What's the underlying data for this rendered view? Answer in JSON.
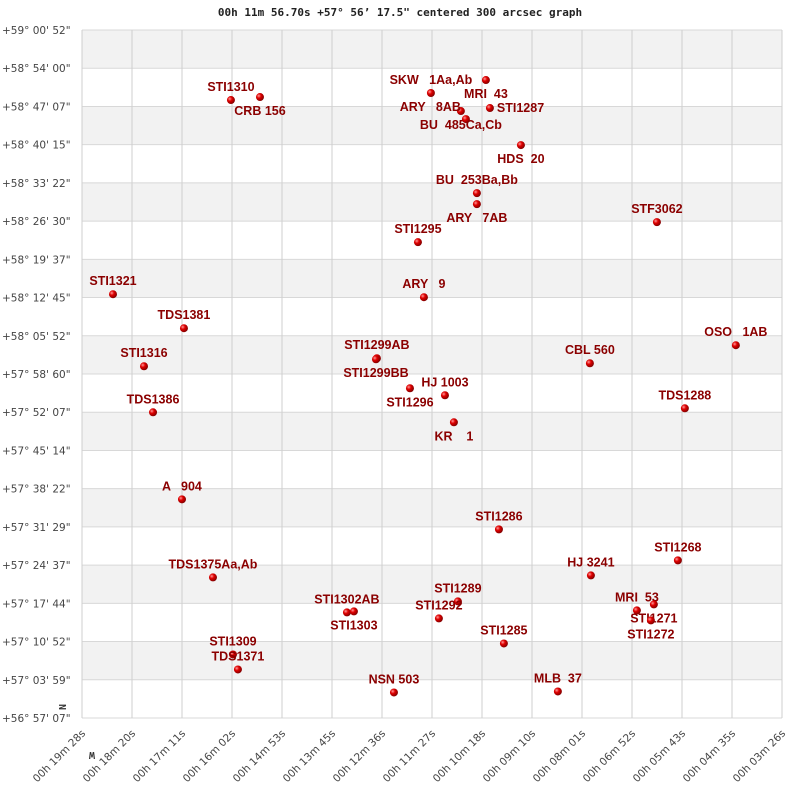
{
  "chart_data": {
    "type": "scatter",
    "title": "00h 11m 56.70s +57° 56’ 17.5\" centered 300 arcsec graph",
    "x_axis": {
      "quantity": "right ascension (seconds of time)",
      "reversed": true,
      "range_s": [
        1168,
        206
      ],
      "tick_labels": [
        "00h 19m 28s",
        "00h 18m 20s",
        "00h 17m 11s",
        "00h 16m 02s",
        "00h 14m 53s",
        "00h 13m 45s",
        "00h 12m 36s",
        "00h 11m 27s",
        "00h 10m 18s",
        "00h 09m 10s",
        "00h 08m 01s",
        "00h 06m 52s",
        "00h 05m 43s",
        "00h 04m 35s",
        "00h 03m 26s"
      ],
      "direction_label": "W"
    },
    "y_axis": {
      "quantity": "declination (degrees)",
      "range_deg": [
        56.9519,
        59.0144
      ],
      "tick_labels": [
        "+59° 00' 52\"",
        "+58° 54' 00\"",
        "+58° 47' 07\"",
        "+58° 40' 15\"",
        "+58° 33' 22\"",
        "+58° 26' 30\"",
        "+58° 19' 37\"",
        "+58° 12' 45\"",
        "+58° 05' 52\"",
        "+57° 58' 60\"",
        "+57° 52' 07\"",
        "+57° 45' 14\"",
        "+57° 38' 22\"",
        "+57° 31' 29\"",
        "+57° 24' 37\"",
        "+57° 17' 44\"",
        "+57° 10' 52\"",
        "+57° 03' 59\"",
        "+56° 57' 07\""
      ],
      "direction_label": "N"
    },
    "grid": true,
    "alternating_bands": true,
    "colors": {
      "label": "#8b0000",
      "marker": "#dd0000",
      "band": "#f2f2f2",
      "grid": "#d8d8d8"
    },
    "points": [
      {
        "name": "SKW   1Aa,Ab",
        "ra_s": 688.5,
        "dec": 58.8255
      },
      {
        "name": "MRI  43",
        "ra_s": 612.9,
        "dec": 58.8644
      },
      {
        "name": "BU  485Ca,Cb",
        "ra_s": 647.3,
        "dec": 58.7714
      },
      {
        "name": "ARY   8AB",
        "ra_s": 640.4,
        "dec": 58.7474
      },
      {
        "name": "STI1287",
        "ra_s": 607.4,
        "dec": 58.7804
      },
      {
        "name": "HDS  20",
        "ra_s": 564.8,
        "dec": 58.6694
      },
      {
        "name": "BU  253Ba,Bb",
        "ra_s": 625.3,
        "dec": 58.5254
      },
      {
        "name": "ARY   7AB",
        "ra_s": 625.3,
        "dec": 58.4924
      },
      {
        "name": "STF3062",
        "ra_s": 377.9,
        "dec": 58.4384
      },
      {
        "name": "STI1295",
        "ra_s": 706.3,
        "dec": 58.3784
      },
      {
        "name": "STI1310",
        "ra_s": 963.3,
        "dec": 58.8044
      },
      {
        "name": "CRB 156",
        "ra_s": 923.4,
        "dec": 58.8134
      },
      {
        "name": "STI1321",
        "ra_s": 1125.4,
        "dec": 58.2224
      },
      {
        "name": "ARY   9",
        "ra_s": 698.1,
        "dec": 58.2134
      },
      {
        "name": "TDS1381",
        "ra_s": 1027.9,
        "dec": 58.1204
      },
      {
        "name": "OSO   1AB",
        "ra_s": 269.4,
        "dec": 58.0694
      },
      {
        "name": "STI1316",
        "ra_s": 1082.8,
        "dec": 58.0064
      },
      {
        "name": "STI1299AB",
        "ra_s": 762.7,
        "dec": 58.0304
      },
      {
        "name": "STI1299BB",
        "ra_s": 764.0,
        "dec": 58.0274
      },
      {
        "name": "CBL 560",
        "ra_s": 470.0,
        "dec": 58.0154
      },
      {
        "name": "STI1296",
        "ra_s": 717.3,
        "dec": 57.9404
      },
      {
        "name": "HJ 1003",
        "ra_s": 669.2,
        "dec": 57.9194
      },
      {
        "name": "TDS1386",
        "ra_s": 1070.4,
        "dec": 57.8684
      },
      {
        "name": "TDS1288",
        "ra_s": 339.5,
        "dec": 57.8804
      },
      {
        "name": "KR    1",
        "ra_s": 656.9,
        "dec": 57.8384
      },
      {
        "name": "A   904",
        "ra_s": 1030.6,
        "dec": 57.6074
      },
      {
        "name": "STI1286",
        "ra_s": 595.0,
        "dec": 57.5174
      },
      {
        "name": "STI1268",
        "ra_s": 349.1,
        "dec": 57.4244
      },
      {
        "name": "TDS1375Aa,Ab",
        "ra_s": 988.0,
        "dec": 57.3734
      },
      {
        "name": "HJ 3241",
        "ra_s": 468.6,
        "dec": 57.3794
      },
      {
        "name": "STI1289",
        "ra_s": 651.4,
        "dec": 57.3014
      },
      {
        "name": "STI1302AB",
        "ra_s": 803.9,
        "dec": 57.2684
      },
      {
        "name": "STI1303",
        "ra_s": 794.3,
        "dec": 57.2714
      },
      {
        "name": "STI1292",
        "ra_s": 677.5,
        "dec": 57.2504
      },
      {
        "name": "MRI  53",
        "ra_s": 405.4,
        "dec": 57.2744
      },
      {
        "name": "STI1271",
        "ra_s": 382.1,
        "dec": 57.2924
      },
      {
        "name": "STI1272",
        "ra_s": 386.2,
        "dec": 57.2444
      },
      {
        "name": "STI1285",
        "ra_s": 588.2,
        "dec": 57.1754
      },
      {
        "name": "STI1309",
        "ra_s": 960.5,
        "dec": 57.1424
      },
      {
        "name": "TDS1371",
        "ra_s": 953.7,
        "dec": 57.0974
      },
      {
        "name": "NSN 503",
        "ra_s": 739.3,
        "dec": 57.0284
      },
      {
        "name": "MLB  37",
        "ra_s": 514.0,
        "dec": 57.0314
      }
    ]
  }
}
